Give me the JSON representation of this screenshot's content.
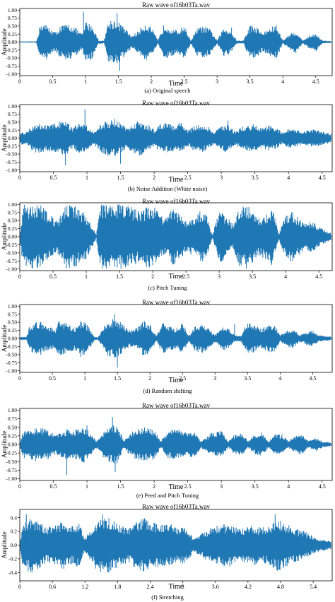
{
  "figure": {
    "panels": [
      {
        "title": "Raw wave of16b03Ta.wav",
        "caption": "(a) Original speech",
        "ylabel": "Amplitude",
        "xlabel": "Time"
      },
      {
        "title": "Raw wave of16b03Ta.wav",
        "caption": "(b) Noise Addition (White noise)",
        "ylabel": "Amplitude",
        "xlabel": "Time"
      },
      {
        "title": "Raw wave of16b03Ta.wav",
        "caption": "(c) Pitch Tuning",
        "ylabel": "Amplitude",
        "xlabel": "Time"
      },
      {
        "title": "Raw wave of16b03Ta.wav",
        "caption": "(d) Random shifting",
        "ylabel": "Amplitude",
        "xlabel": "Time"
      },
      {
        "title": "Raw wave of16b03Ta.wav",
        "caption": "(e) Peed and Pitch Tuning",
        "ylabel": "Amplitude",
        "xlabel": "Time"
      },
      {
        "title": "Raw wave of16b03Ta.wav",
        "caption": "(f) Stretching",
        "ylabel": "Amplitude",
        "xlabel": "Time"
      }
    ]
  },
  "chart_data": [
    {
      "type": "area",
      "title": "Raw wave of16b03Ta.wav",
      "xlabel": "Time",
      "ylabel": "Amplitude",
      "xlim": [
        0,
        4.75
      ],
      "ylim": [
        -1.05,
        1.05
      ],
      "xticks": [
        0,
        0.5,
        1,
        1.5,
        2,
        2.5,
        3,
        3.5,
        4,
        4.5
      ],
      "xtick_labels": [
        "0",
        "0.5",
        "1",
        "1.5",
        "2",
        "2.5",
        "3",
        "3.5",
        "4",
        "4.5"
      ],
      "yticks": [
        -1.0,
        -0.75,
        -0.5,
        -0.25,
        0.0,
        0.25,
        0.5,
        0.75,
        1.0
      ],
      "ytick_labels": [
        "-1.00",
        "-0.75",
        "-0.50",
        "-0.25",
        "0.00",
        "0.25",
        "0.50",
        "0.75",
        "1.00"
      ],
      "grid": false,
      "series_color": "#1f77b4",
      "envelope": {
        "t": [
          0.0,
          0.25,
          0.32,
          0.4,
          0.55,
          0.6,
          0.75,
          0.85,
          0.95,
          1.0,
          1.1,
          1.2,
          1.28,
          1.35,
          1.45,
          1.55,
          1.7,
          1.8,
          1.9,
          2.0,
          2.1,
          2.2,
          2.3,
          2.4,
          2.5,
          2.6,
          2.7,
          2.8,
          2.9,
          3.0,
          3.1,
          3.2,
          3.3,
          3.4,
          3.5,
          3.6,
          3.7,
          3.8,
          3.9,
          4.0,
          4.1,
          4.2,
          4.3,
          4.4,
          4.5,
          4.6,
          4.75
        ],
        "amp": [
          0.02,
          0.02,
          0.62,
          0.55,
          0.3,
          0.5,
          0.58,
          0.45,
          0.25,
          0.65,
          0.55,
          0.05,
          0.05,
          0.7,
          0.72,
          0.55,
          0.2,
          0.35,
          0.6,
          0.48,
          0.05,
          0.6,
          0.45,
          0.35,
          0.55,
          0.05,
          0.45,
          0.5,
          0.4,
          0.05,
          0.45,
          0.4,
          0.05,
          0.05,
          0.55,
          0.48,
          0.3,
          0.45,
          0.55,
          0.05,
          0.25,
          0.35,
          0.05,
          0.2,
          0.3,
          0.05,
          0.03
        ]
      },
      "spikes": [
        {
          "t": 0.97,
          "v": 0.95
        },
        {
          "t": 1.48,
          "v": 0.9
        },
        {
          "t": 1.52,
          "v": -0.9
        },
        {
          "t": 3.22,
          "v": 0.45
        }
      ]
    },
    {
      "type": "area",
      "title": "Raw wave of16b03Ta.wav",
      "xlabel": "Time",
      "ylabel": "Amplitude",
      "xlim": [
        0,
        4.65
      ],
      "ylim": [
        -1.05,
        1.05
      ],
      "xticks": [
        0,
        0.5,
        1,
        1.5,
        2,
        2.5,
        3,
        3.5,
        4,
        4.5
      ],
      "xtick_labels": [
        "0",
        "0.5",
        "1",
        "1.5",
        "2",
        "2.5",
        "3",
        "3.5",
        "4",
        "4.5"
      ],
      "yticks": [
        -1.0,
        -0.75,
        -0.5,
        -0.25,
        0.0,
        0.25,
        0.5,
        0.75,
        1.0
      ],
      "ytick_labels": [
        "-1.00",
        "-0.75",
        "-0.50",
        "-0.25",
        "0.00",
        "0.25",
        "0.50",
        "0.75",
        "1.00"
      ],
      "grid": false,
      "series_color": "#1f77b4",
      "envelope": {
        "t": [
          0.0,
          0.1,
          0.2,
          0.3,
          0.4,
          0.5,
          0.6,
          0.7,
          0.8,
          0.9,
          1.0,
          1.1,
          1.2,
          1.3,
          1.4,
          1.5,
          1.6,
          1.7,
          1.8,
          1.9,
          2.0,
          2.1,
          2.2,
          2.3,
          2.4,
          2.5,
          2.6,
          2.7,
          2.8,
          2.9,
          3.0,
          3.1,
          3.2,
          3.3,
          3.4,
          3.5,
          3.6,
          3.7,
          3.8,
          3.9,
          4.0,
          4.1,
          4.2,
          4.3,
          4.4,
          4.5,
          4.65
        ],
        "amp": [
          0.2,
          0.2,
          0.45,
          0.5,
          0.4,
          0.45,
          0.55,
          0.5,
          0.35,
          0.55,
          0.4,
          0.2,
          0.45,
          0.55,
          0.62,
          0.48,
          0.3,
          0.5,
          0.55,
          0.45,
          0.25,
          0.5,
          0.45,
          0.4,
          0.5,
          0.25,
          0.4,
          0.45,
          0.35,
          0.2,
          0.4,
          0.45,
          0.2,
          0.35,
          0.4,
          0.45,
          0.3,
          0.4,
          0.35,
          0.2,
          0.3,
          0.3,
          0.2,
          0.25,
          0.3,
          0.2,
          0.15
        ]
      },
      "spikes": [
        {
          "t": 0.97,
          "v": 0.9
        },
        {
          "t": 0.68,
          "v": -0.85
        },
        {
          "t": 1.5,
          "v": -0.8
        },
        {
          "t": 3.1,
          "v": 0.55
        }
      ]
    },
    {
      "type": "area",
      "title": "Raw wave of16b03Ta.wav",
      "xlabel": "Time",
      "ylabel": "Amplitude",
      "xlim": [
        0,
        4.7
      ],
      "ylim": [
        -1.05,
        1.05
      ],
      "xticks": [
        0,
        0.5,
        1,
        1.5,
        2,
        2.5,
        3,
        3.5,
        4,
        4.5
      ],
      "xtick_labels": [
        "0",
        "0.5",
        "1",
        "1.5",
        "2",
        "2.5",
        "3",
        "3.5",
        "4",
        "4.5"
      ],
      "yticks": [
        -1.0,
        -0.75,
        -0.5,
        -0.25,
        0.0,
        0.25,
        0.5,
        0.75,
        1.0
      ],
      "ytick_labels": [
        "-1.00",
        "-0.75",
        "-0.50",
        "-0.25",
        "0.00",
        "0.25",
        "0.50",
        "0.75",
        "1.00"
      ],
      "grid": false,
      "series_color": "#1f77b4",
      "envelope": {
        "t": [
          0.0,
          0.05,
          0.3,
          0.35,
          0.45,
          0.55,
          0.6,
          0.7,
          0.8,
          0.9,
          1.0,
          1.1,
          1.15,
          1.2,
          1.4,
          1.5,
          1.6,
          1.7,
          1.85,
          1.9,
          2.0,
          2.1,
          2.2,
          2.3,
          2.4,
          2.5,
          2.6,
          2.7,
          2.8,
          2.9,
          3.0,
          3.1,
          3.2,
          3.3,
          3.4,
          3.5,
          3.6,
          3.7,
          3.8,
          3.9,
          4.0,
          4.1,
          4.2,
          4.3,
          4.4,
          4.5,
          4.7
        ],
        "amp": [
          0.05,
          1.0,
          1.0,
          0.9,
          0.7,
          0.5,
          0.6,
          1.0,
          1.0,
          0.85,
          0.7,
          0.3,
          0.05,
          1.0,
          1.0,
          1.0,
          1.0,
          0.9,
          0.8,
          0.95,
          1.0,
          0.7,
          0.6,
          0.9,
          0.7,
          0.5,
          0.6,
          0.8,
          0.75,
          0.05,
          0.9,
          0.7,
          0.4,
          0.9,
          1.0,
          0.9,
          0.6,
          0.7,
          0.9,
          0.1,
          0.7,
          0.8,
          0.6,
          0.4,
          0.5,
          0.3,
          0.1
        ]
      },
      "spikes": []
    },
    {
      "type": "area",
      "title": "Raw wave of16b03Ta.wav",
      "xlabel": "Time",
      "ylabel": "Amplitude",
      "xlim": [
        0,
        4.8
      ],
      "ylim": [
        -1.05,
        1.05
      ],
      "xticks": [
        0,
        0.5,
        1,
        1.5,
        2,
        2.5,
        3,
        3.5,
        4,
        4.5
      ],
      "xtick_labels": [
        "0",
        "0.5",
        "1",
        "1.5",
        "2",
        "2.5",
        "3",
        "3.5",
        "4",
        "4.5"
      ],
      "yticks": [
        -1.0,
        -0.75,
        -0.5,
        -0.25,
        0.0,
        0.25,
        0.5,
        0.75,
        1.0
      ],
      "ytick_labels": [
        "-1.00",
        "-0.75",
        "-0.50",
        "-0.25",
        "0.00",
        "0.25",
        "0.50",
        "0.75",
        "1.00"
      ],
      "grid": false,
      "series_color": "#1f77b4",
      "envelope": {
        "t": [
          0.0,
          0.1,
          0.15,
          0.3,
          0.4,
          0.55,
          0.6,
          0.7,
          0.85,
          0.95,
          1.05,
          1.15,
          1.2,
          1.35,
          1.45,
          1.55,
          1.7,
          1.8,
          1.9,
          2.0,
          2.1,
          2.2,
          2.3,
          2.4,
          2.5,
          2.6,
          2.7,
          2.8,
          2.9,
          3.0,
          3.1,
          3.2,
          3.3,
          3.4,
          3.5,
          3.6,
          3.7,
          3.8,
          3.9,
          4.0,
          4.1,
          4.2,
          4.3,
          4.4,
          4.5,
          4.6,
          4.8
        ],
        "amp": [
          0.05,
          0.05,
          0.4,
          0.55,
          0.4,
          0.3,
          0.55,
          0.5,
          0.35,
          0.6,
          0.4,
          0.05,
          0.05,
          0.55,
          0.62,
          0.5,
          0.25,
          0.35,
          0.55,
          0.45,
          0.1,
          0.5,
          0.4,
          0.3,
          0.5,
          0.1,
          0.4,
          0.45,
          0.35,
          0.1,
          0.4,
          0.35,
          0.1,
          0.1,
          0.5,
          0.45,
          0.3,
          0.4,
          0.5,
          0.1,
          0.25,
          0.3,
          0.1,
          0.2,
          0.25,
          0.1,
          0.05
        ]
      },
      "spikes": [
        {
          "t": 1.45,
          "v": 0.75
        },
        {
          "t": 1.5,
          "v": -0.9
        },
        {
          "t": 3.3,
          "v": 0.45
        }
      ]
    },
    {
      "type": "area",
      "title": "Raw wave of16b03Ta.wav",
      "xlabel": "Time",
      "ylabel": "Amplitude",
      "xlim": [
        0,
        4.65
      ],
      "ylim": [
        -1.05,
        1.05
      ],
      "xticks": [
        0,
        0.5,
        1,
        1.5,
        2,
        2.5,
        3,
        3.5,
        4,
        4.5
      ],
      "xtick_labels": [
        "0",
        "0.5",
        "1",
        "1.5",
        "2",
        "2.5",
        "3",
        "3.5",
        "4",
        "4.5"
      ],
      "yticks": [
        -1.0,
        -0.75,
        -0.5,
        -0.25,
        0.0,
        0.25,
        0.5,
        0.75,
        1.0
      ],
      "ytick_labels": [
        "-1.00",
        "-0.75",
        "-0.50",
        "-0.25",
        "0.00",
        "0.25",
        "0.50",
        "0.75",
        "1.00"
      ],
      "grid": false,
      "series_color": "#1f77b4",
      "envelope": {
        "t": [
          0.0,
          0.05,
          0.15,
          0.3,
          0.45,
          0.55,
          0.7,
          0.8,
          0.95,
          1.05,
          1.15,
          1.25,
          1.35,
          1.45,
          1.55,
          1.65,
          1.75,
          1.85,
          2.0,
          2.1,
          2.2,
          2.35,
          2.45,
          2.6,
          2.7,
          2.85,
          3.0,
          3.1,
          3.2,
          3.3,
          3.4,
          3.5,
          3.6,
          3.7,
          3.8,
          3.9,
          4.0,
          4.1,
          4.2,
          4.3,
          4.4,
          4.5,
          4.65
        ],
        "amp": [
          0.05,
          0.4,
          0.45,
          0.5,
          0.4,
          0.3,
          0.45,
          0.4,
          0.55,
          0.35,
          0.1,
          0.4,
          0.55,
          0.6,
          0.1,
          0.35,
          0.45,
          0.5,
          0.45,
          0.1,
          0.4,
          0.45,
          0.35,
          0.4,
          0.1,
          0.35,
          0.4,
          0.1,
          0.3,
          0.35,
          0.1,
          0.3,
          0.35,
          0.1,
          0.3,
          0.3,
          0.1,
          0.25,
          0.3,
          0.1,
          0.2,
          0.1,
          0.05
        ]
      },
      "spikes": [
        {
          "t": 1.0,
          "v": 0.55
        },
        {
          "t": 1.38,
          "v": 0.8
        },
        {
          "t": 1.42,
          "v": -0.8
        },
        {
          "t": 0.7,
          "v": -0.9
        }
      ]
    },
    {
      "type": "area",
      "title": "Raw wave of16b03Ta.wav",
      "xlabel": "Time",
      "ylabel": "Amplitude",
      "xlim": [
        0,
        5.75
      ],
      "ylim": [
        -0.52,
        0.52
      ],
      "xticks": [
        0,
        0.6,
        1.2,
        1.8,
        2.4,
        3.0,
        3.6,
        4.2,
        4.8,
        5.4
      ],
      "xtick_labels": [
        "0",
        "0.6",
        "1.2",
        "1.8",
        "2.4",
        "3",
        "3.6",
        "4.2",
        "4.8",
        "5.4"
      ],
      "yticks": [
        -0.4,
        -0.2,
        0.0,
        0.2,
        0.4
      ],
      "ytick_labels": [
        "-0.4",
        "-0.2",
        "0.0",
        "0.2",
        "0.4"
      ],
      "grid": false,
      "series_color": "#1f77b4",
      "envelope": {
        "t": [
          0.0,
          0.05,
          0.2,
          0.35,
          0.5,
          0.65,
          0.8,
          0.95,
          1.1,
          1.2,
          1.4,
          1.55,
          1.7,
          1.85,
          2.0,
          2.15,
          2.3,
          2.45,
          2.6,
          2.75,
          2.9,
          3.05,
          3.2,
          3.4,
          3.55,
          3.7,
          3.85,
          4.0,
          4.15,
          4.3,
          4.45,
          4.6,
          4.75,
          4.9,
          5.05,
          5.2,
          5.35,
          5.5,
          5.75
        ],
        "amp": [
          0.05,
          0.3,
          0.42,
          0.35,
          0.25,
          0.3,
          0.35,
          0.28,
          0.33,
          0.1,
          0.35,
          0.42,
          0.38,
          0.3,
          0.25,
          0.35,
          0.4,
          0.35,
          0.3,
          0.33,
          0.25,
          0.28,
          0.1,
          0.2,
          0.28,
          0.3,
          0.32,
          0.25,
          0.28,
          0.3,
          0.25,
          0.3,
          0.38,
          0.32,
          0.25,
          0.22,
          0.15,
          0.1,
          0.05
        ]
      },
      "spikes": [
        {
          "t": 0.12,
          "v": 0.45
        },
        {
          "t": 1.52,
          "v": 0.45
        },
        {
          "t": 4.7,
          "v": 0.45
        }
      ]
    }
  ]
}
